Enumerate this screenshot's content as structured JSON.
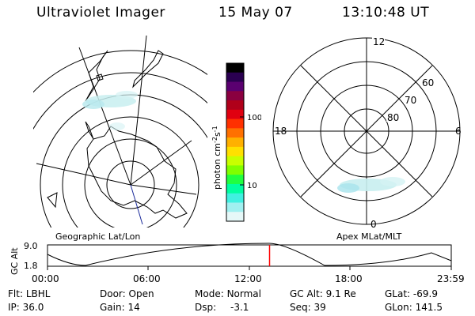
{
  "header": {
    "instrument": "Ultraviolet Imager",
    "date": "15 May 07",
    "time": "13:10:48 UT"
  },
  "colors": {
    "background": "#ffffff",
    "foreground": "#000000",
    "cursor": "#ff0000",
    "aurora": "#c8eef0",
    "meridian": "#1a2a9a"
  },
  "colorbar": {
    "unit_main": "photon cm",
    "unit_exp1": "-2",
    "unit_mid": "s",
    "unit_exp2": "-1",
    "tick_100": "100",
    "tick_10": "10",
    "colors": [
      "#000000",
      "#2a0050",
      "#5a0070",
      "#8a0040",
      "#b0001a",
      "#e00010",
      "#ff3000",
      "#ff7000",
      "#ffb000",
      "#ffe000",
      "#c8ff00",
      "#80ff00",
      "#20ff40",
      "#00ffa0",
      "#40f0e0",
      "#a0f0f0",
      "#e6f8f8"
    ]
  },
  "left_map": {
    "label": "Geographic Lat/Lon"
  },
  "right_map": {
    "label": "Apex MLat/MLT",
    "mlt_12": "12",
    "mlt_18": "18",
    "mlt_6": "6",
    "mlt_0": "0",
    "lat_60": "60",
    "lat_70": "70",
    "lat_80": "80"
  },
  "timeline": {
    "ylabel": "GC Alt",
    "y_max": "9.0",
    "y_min": "1.8",
    "x_ticks": [
      "00:00",
      "06:00",
      "12:00",
      "18:00",
      "23:59"
    ],
    "current_fraction": 0.55
  },
  "footer": {
    "flt_label": "Flt:",
    "flt_value": "LBHL",
    "door_label": "Door:",
    "door_value": "Open",
    "mode_label": "Mode:",
    "mode_value": "Normal",
    "gcalt_label": "GC Alt:",
    "gcalt_value": "9.1 Re",
    "glat_label": "GLat:",
    "glat_value": "-69.9",
    "ip_label": "IP:",
    "ip_value": "36.0",
    "gain_label": "Gain:",
    "gain_value": "14",
    "dsp_label": "Dsp:",
    "dsp_value": "-3.1",
    "seq_label": "Seq:",
    "seq_value": "39",
    "glon_label": "GLon:",
    "glon_value": "141.5"
  }
}
